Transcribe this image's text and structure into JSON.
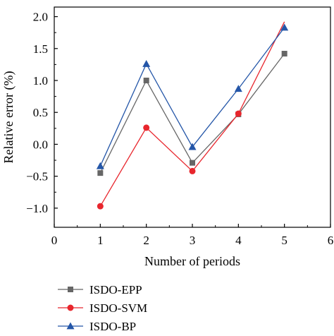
{
  "chart_data": {
    "type": "line",
    "xlabel": "Number of periods",
    "ylabel": "Relative error (%)",
    "xlim": [
      0,
      6
    ],
    "ylim": [
      -1.3,
      2.15
    ],
    "xticks": [
      0,
      1,
      2,
      3,
      4,
      5,
      6
    ],
    "xtick_labels": [
      "0",
      "1",
      "2",
      "3",
      "4",
      "5",
      "6"
    ],
    "yticks": [
      -1.0,
      -0.5,
      0.0,
      0.5,
      1.0,
      1.5,
      2.0
    ],
    "ytick_labels": [
      "−1.0",
      "−0.5",
      "0.0",
      "0.5",
      "1.0",
      "1.5",
      "2.0"
    ],
    "grid": false,
    "legend_position": "below-plot-left",
    "series": [
      {
        "name": "ISDO-EPP",
        "color": "#666666",
        "marker": "square",
        "x": [
          1,
          2,
          3,
          4,
          5
        ],
        "y": [
          -0.45,
          1.0,
          -0.29,
          0.47,
          1.42
        ]
      },
      {
        "name": "ISDO-SVM",
        "color": "#e8262d",
        "marker": "circle",
        "x": [
          1,
          2,
          3,
          4,
          5
        ],
        "y": [
          -0.97,
          0.26,
          -0.42,
          0.48,
          1.92
        ]
      },
      {
        "name": "ISDO-BP",
        "color": "#2456a8",
        "marker": "triangle",
        "x": [
          1,
          2,
          3,
          4,
          5
        ],
        "y": [
          -0.34,
          1.26,
          -0.04,
          0.87,
          1.83
        ]
      }
    ]
  }
}
